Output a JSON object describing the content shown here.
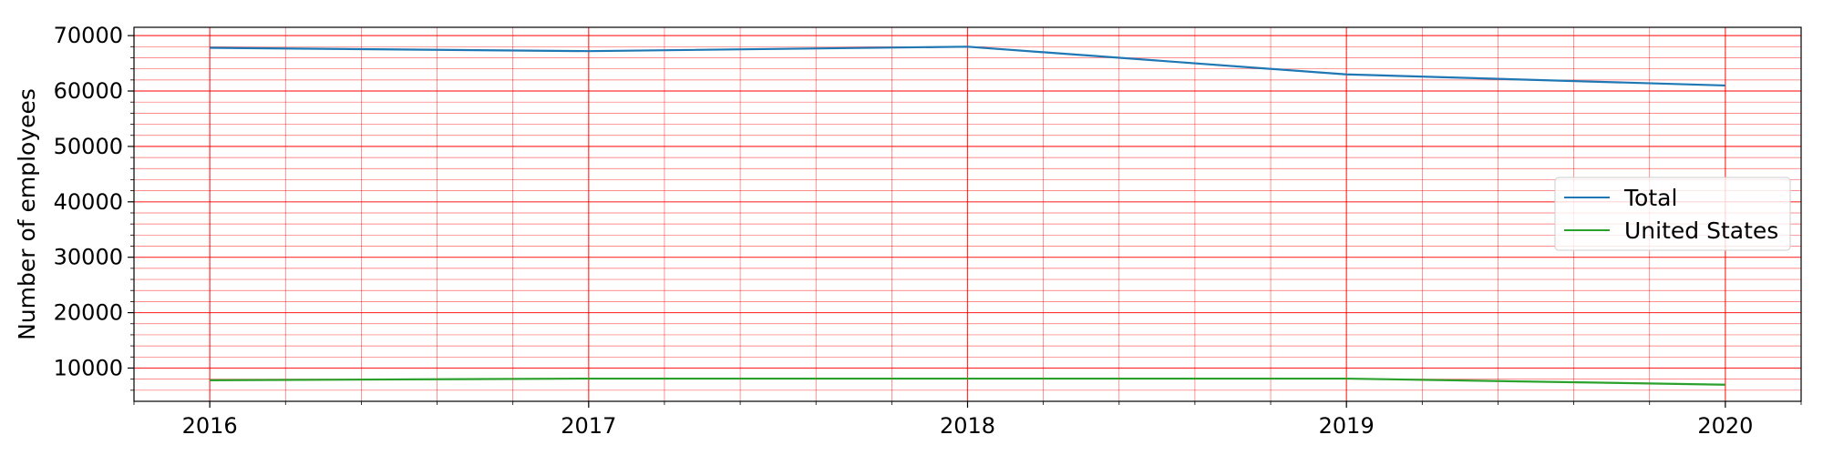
{
  "chart_data": {
    "type": "line",
    "x": [
      "2016",
      "2017",
      "2018",
      "2019",
      "2020"
    ],
    "xlabel": "",
    "ylabel": "Number of employees",
    "ylim": [
      4000,
      71500
    ],
    "xlim": [
      2015.8,
      2020.2
    ],
    "yticks": [
      10000,
      20000,
      30000,
      40000,
      50000,
      60000,
      70000
    ],
    "ytick_labels": [
      "10000",
      "20000",
      "30000",
      "40000",
      "50000",
      "60000",
      "70000"
    ],
    "xticks": [
      2016,
      2017,
      2018,
      2019,
      2020
    ],
    "xtick_labels": [
      "2016",
      "2017",
      "2018",
      "2019",
      "2020"
    ],
    "series": [
      {
        "name": "Total",
        "color": "#1f77b4",
        "values": [
          67800,
          67200,
          68000,
          63000,
          61000
        ]
      },
      {
        "name": "United States",
        "color": "#2ca02c",
        "values": [
          7800,
          8100,
          8100,
          8100,
          7000
        ]
      }
    ],
    "grid": {
      "major": true,
      "minor": true,
      "color": "#ff0000"
    },
    "legend": {
      "position": "center-right"
    }
  }
}
